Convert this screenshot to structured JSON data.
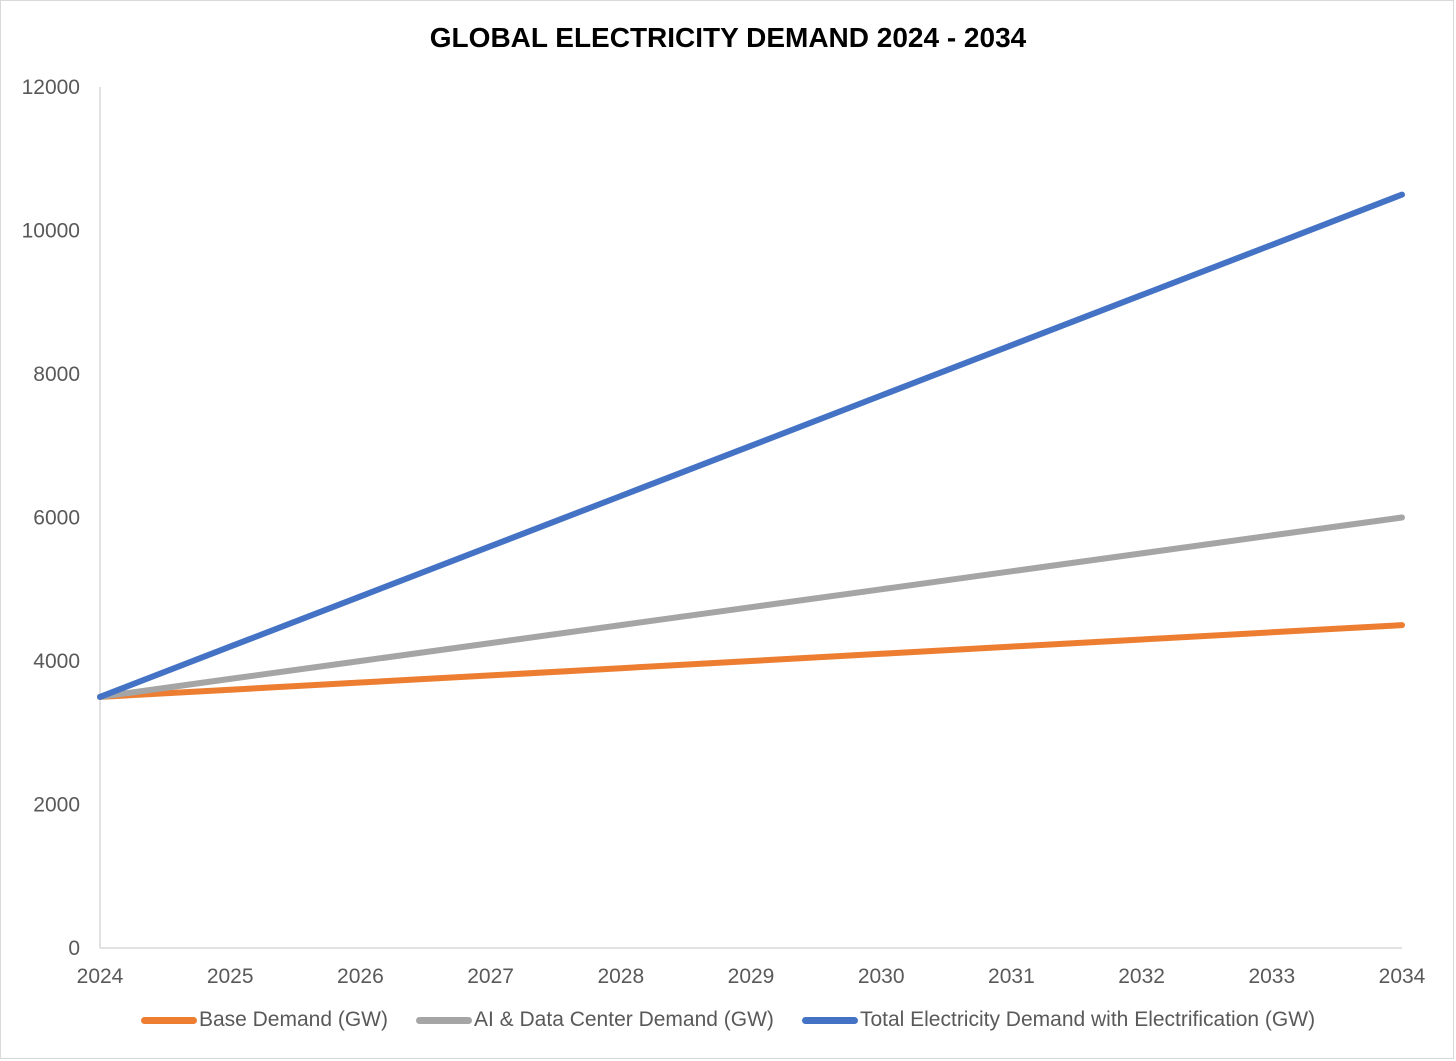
{
  "chart_data": {
    "type": "line",
    "title": "GLOBAL ELECTRICITY DEMAND 2024 - 2034",
    "xlabel": "",
    "ylabel": "",
    "x": [
      "2024",
      "2025",
      "2026",
      "2027",
      "2028",
      "2029",
      "2030",
      "2031",
      "2032",
      "2033",
      "2034"
    ],
    "ylim": [
      0,
      12000
    ],
    "yticks": [
      "0",
      "2000",
      "4000",
      "6000",
      "8000",
      "10000",
      "12000"
    ],
    "grid": false,
    "legend_position": "bottom",
    "series": [
      {
        "name": "Base Demand (GW)",
        "color": "#ed7d31",
        "values": [
          3500,
          3600,
          3700,
          3800,
          3900,
          4000,
          4100,
          4200,
          4300,
          4400,
          4500
        ]
      },
      {
        "name": "AI & Data Center Demand (GW)",
        "color": "#a5a5a5",
        "values": [
          3500,
          3750,
          4000,
          4250,
          4500,
          4750,
          5000,
          5250,
          5500,
          5750,
          6000
        ]
      },
      {
        "name": "Total Electricity Demand with Electrification (GW)",
        "color": "#4472c4",
        "values": [
          3500,
          4200,
          4900,
          5600,
          6300,
          7000,
          7700,
          8400,
          9100,
          9800,
          10500
        ]
      }
    ]
  }
}
